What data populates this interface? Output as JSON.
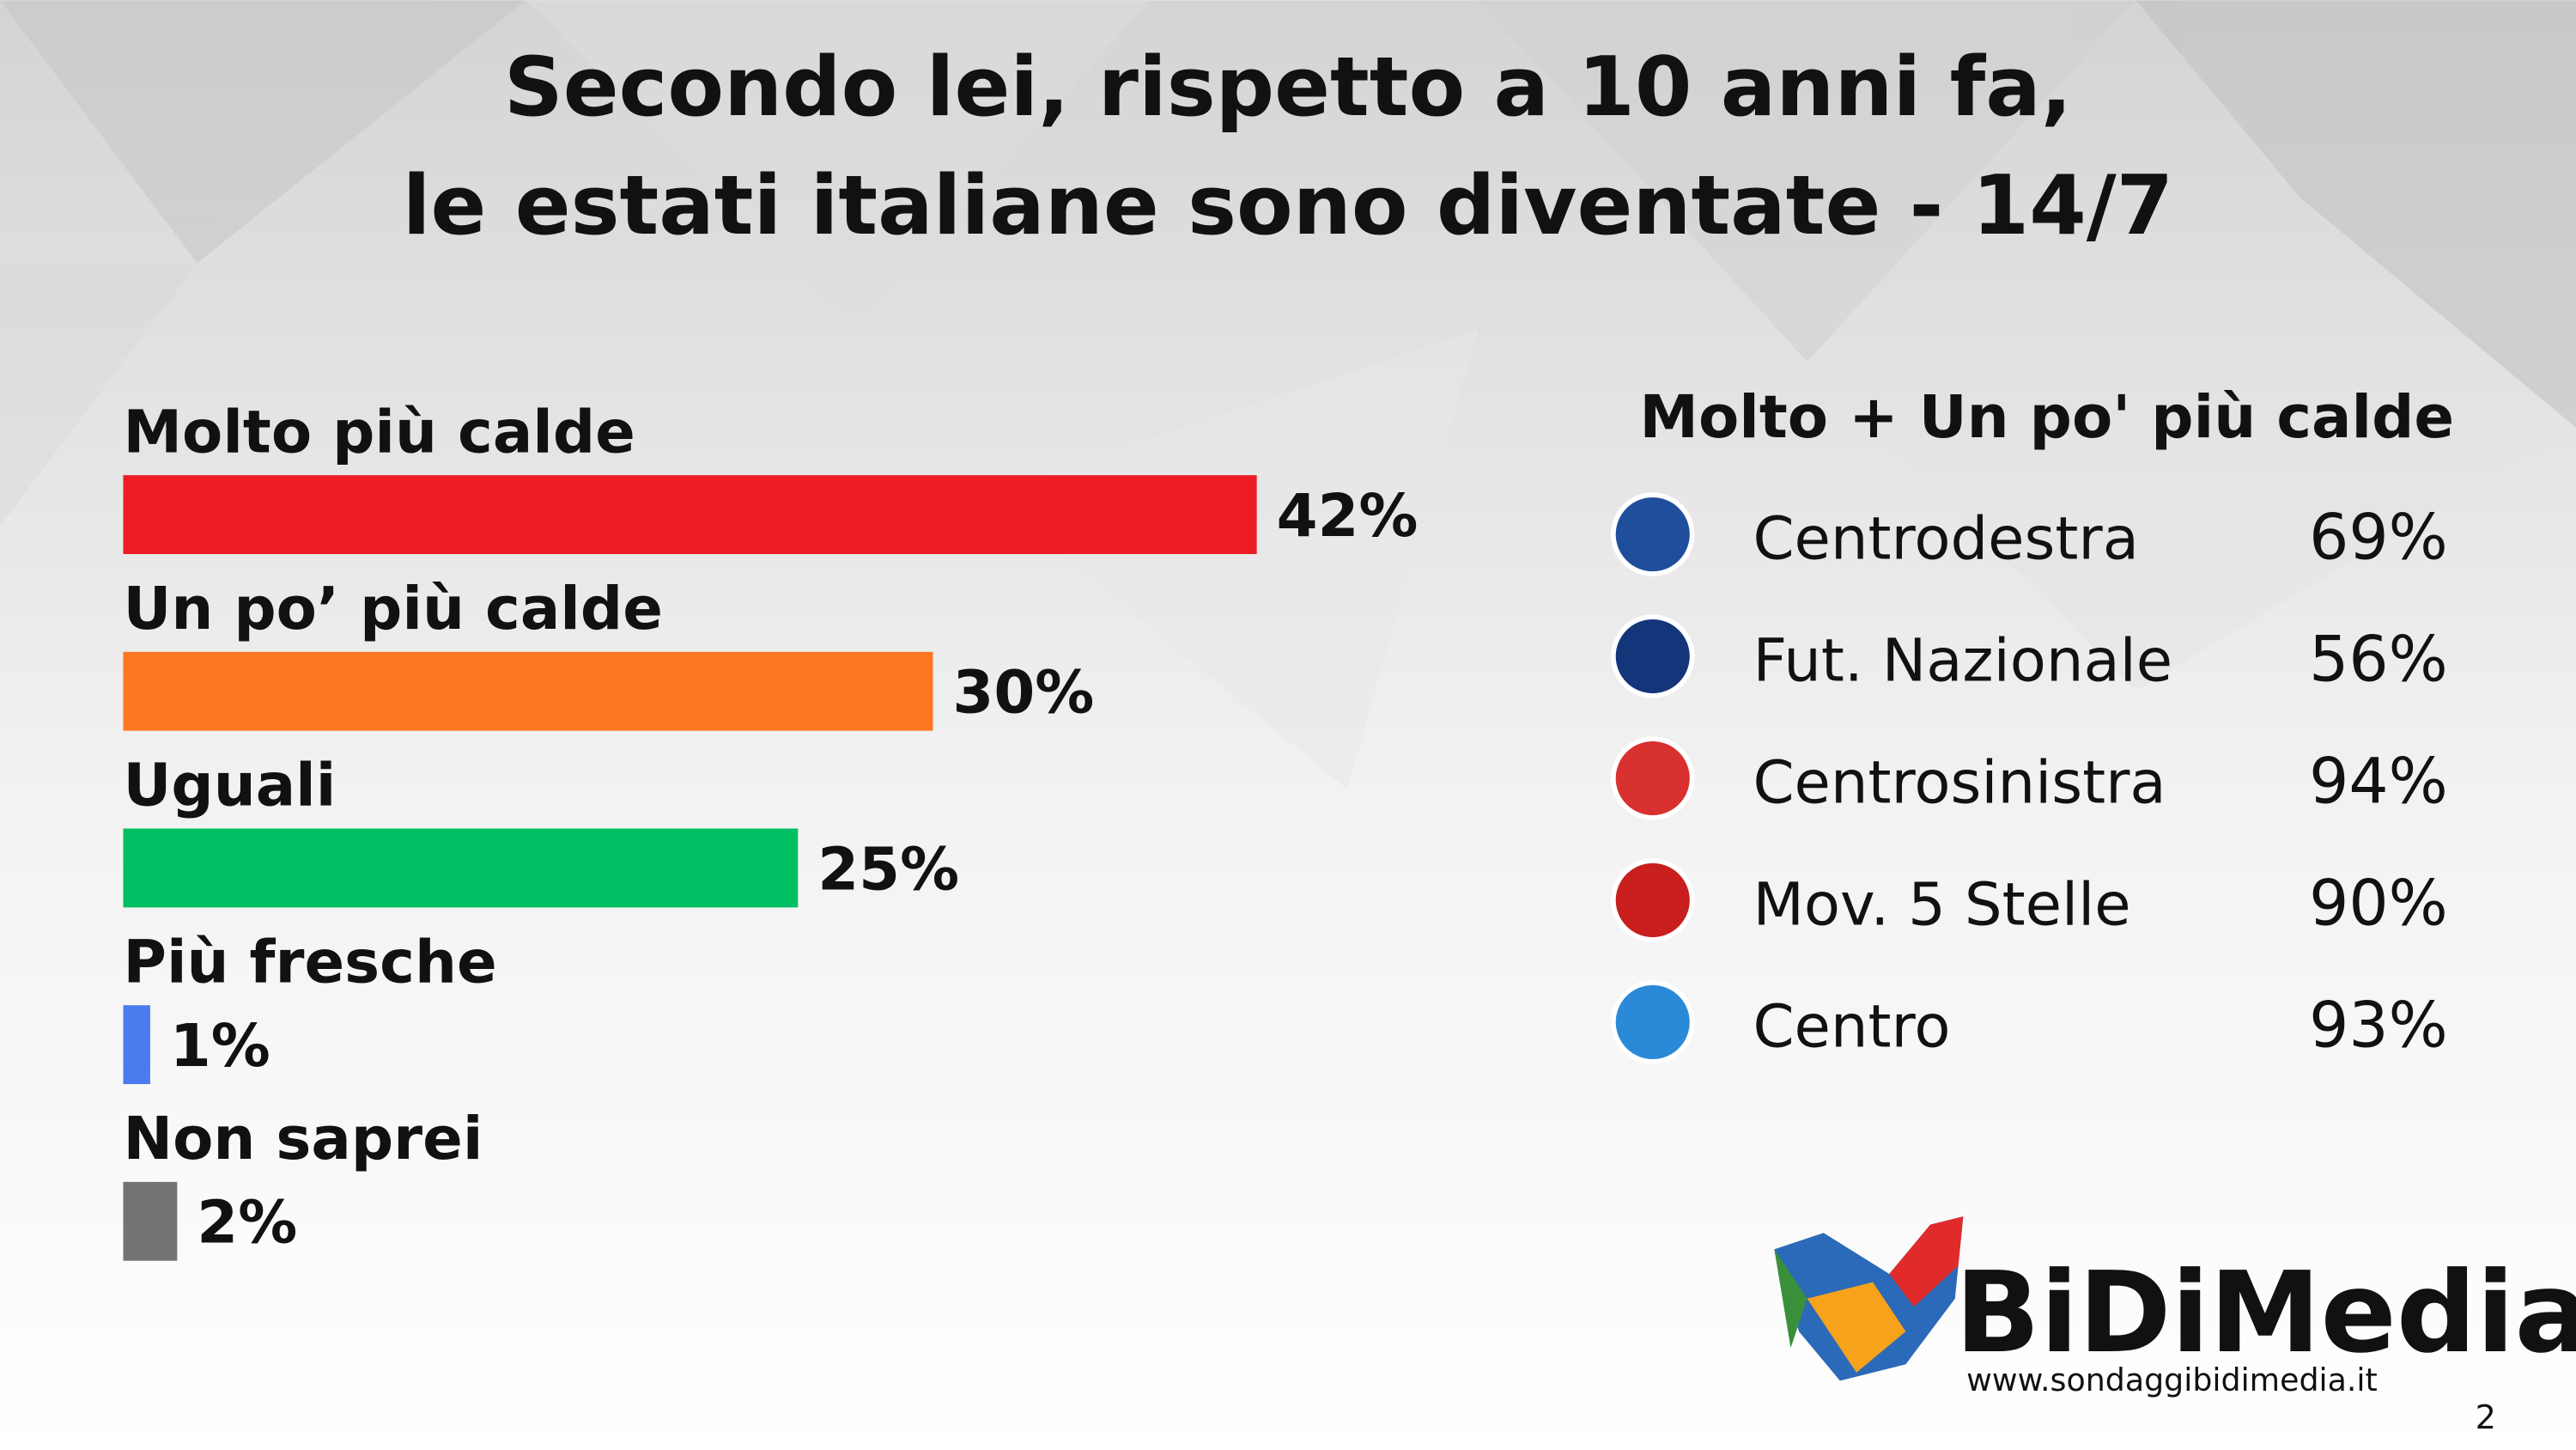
{
  "chart_data": {
    "type": "hbar",
    "title": "Secondo lei, rispetto a 10 anni fa,",
    "subtitle": "le estati italiane sono diventate - 14/7",
    "categories": [
      "Molto più calde",
      "Un po’ più calde",
      "Uguali",
      "Più fresche",
      "Non saprei"
    ],
    "values": [
      42,
      30,
      25,
      1,
      2
    ],
    "value_labels": [
      "42%",
      "30%",
      "25%",
      "1%",
      "2%"
    ],
    "colors": [
      "#ed1c24",
      "#ff7622",
      "#00bf63",
      "#4a7cf0",
      "#737373"
    ]
  },
  "party_table": {
    "title": "Molto + Un po' più calde",
    "rows": [
      [
        "Centrodestra",
        "69%"
      ],
      [
        "Fut. Nazionale",
        "56%"
      ],
      [
        "Centrosinistra",
        "94%"
      ],
      [
        "Mov. 5 Stelle",
        "90%"
      ],
      [
        "Centro",
        "93%"
      ]
    ]
  },
  "brand": {
    "name": "BiDiMedia",
    "url": "www.sondaggibidimedia.it",
    "page": "2"
  }
}
